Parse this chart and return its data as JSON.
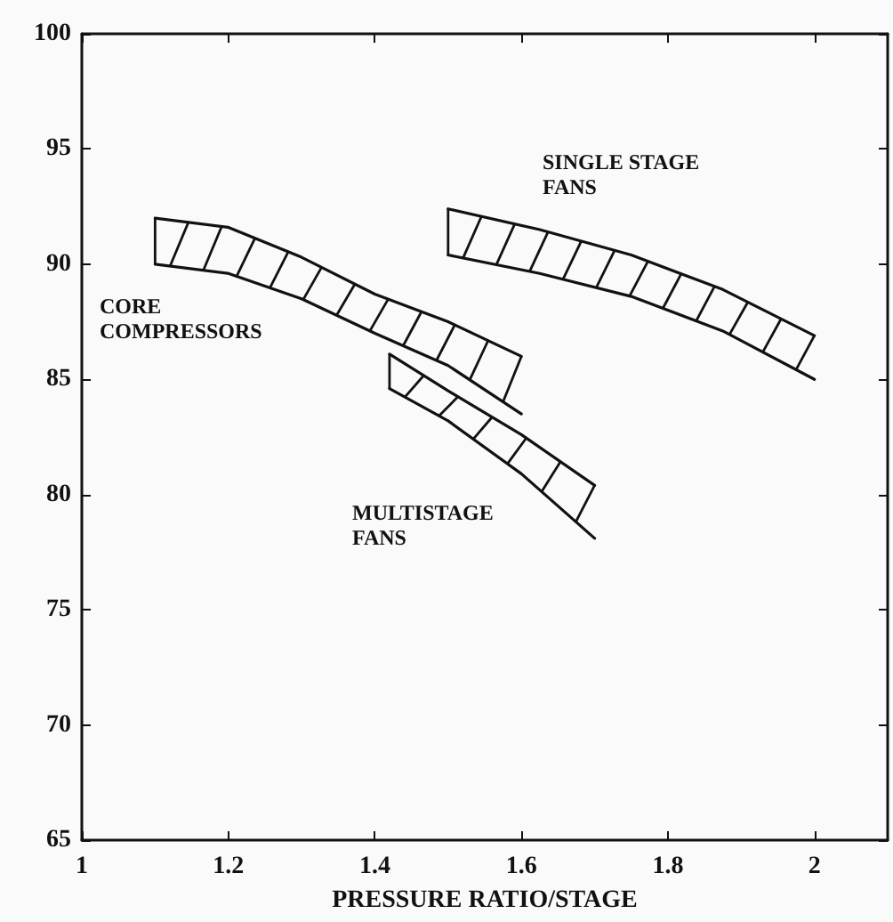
{
  "chart_data": {
    "type": "line",
    "xlabel": "PRESSURE RATIO/STAGE",
    "xlim": [
      1,
      2.1
    ],
    "xticks": [
      1,
      1.2,
      1.4,
      1.6,
      1.8,
      2
    ],
    "ylim": [
      65,
      100
    ],
    "yticks": [
      65,
      70,
      75,
      80,
      85,
      90,
      95,
      100
    ],
    "grid": false,
    "tick_labels": "xy",
    "series": [
      {
        "color": "#111111",
        "x": [
          1.1,
          1.2,
          1.3,
          1.4,
          1.5,
          1.6
        ],
        "values": [
          92,
          91.6,
          90.3,
          88.7,
          87.5,
          86
        ]
      },
      {
        "color": "#111111",
        "x": [
          1.1,
          1.2,
          1.3,
          1.4,
          1.5,
          1.6
        ],
        "values": [
          90,
          89.6,
          88.5,
          87,
          85.6,
          83.5
        ]
      },
      {
        "color": "#111111",
        "x": [
          1.42,
          1.5,
          1.6,
          1.7
        ],
        "values": [
          86.1,
          84.5,
          82.6,
          80.4
        ]
      },
      {
        "color": "#111111",
        "x": [
          1.42,
          1.5,
          1.6,
          1.7
        ],
        "values": [
          84.6,
          83.2,
          80.9,
          78.1
        ]
      },
      {
        "color": "#111111",
        "x": [
          1.5,
          1.625,
          1.75,
          1.875,
          2
        ],
        "values": [
          92.4,
          91.5,
          90.4,
          88.9,
          86.9
        ]
      },
      {
        "color": "#111111",
        "x": [
          1.5,
          1.625,
          1.75,
          1.875,
          2
        ],
        "values": [
          90.4,
          89.6,
          88.6,
          87.1,
          85
        ]
      }
    ],
    "annotations": [
      "CORE\nCOMPRESSORS",
      "MULTISTAGE\nFANS",
      "SINGLE STAGE\nFANS"
    ]
  }
}
